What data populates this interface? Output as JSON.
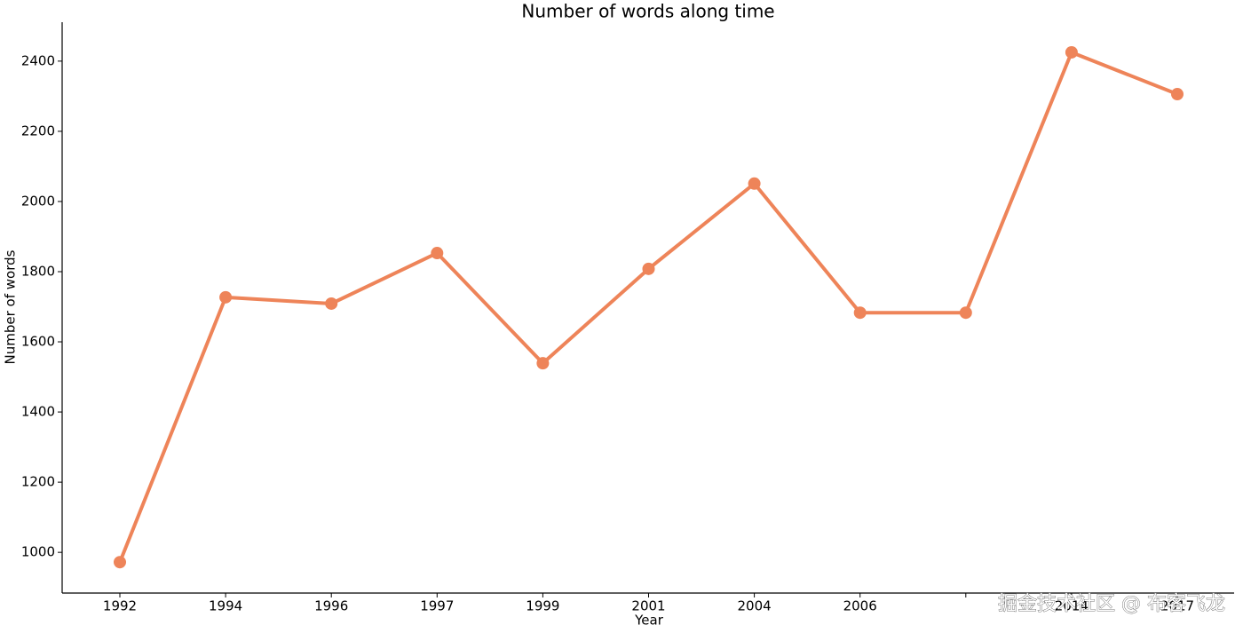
{
  "chart_data": {
    "type": "line",
    "title": "Number of words along time",
    "x_label": "Year",
    "y_label": "Number of words",
    "categories": [
      "1992",
      "1994",
      "1996",
      "1997",
      "1999",
      "2001",
      "2004",
      "2006",
      null,
      "2014",
      "2017"
    ],
    "series": [
      {
        "name": "Number of words",
        "color": "#ee8459",
        "values": [
          972,
          1727,
          1709,
          1853,
          1539,
          1808,
          2051,
          1683,
          1683,
          2425,
          2306
        ]
      }
    ],
    "ylim": [
      884,
      2511
    ],
    "yticks": [
      1000,
      1200,
      1400,
      1600,
      1800,
      2000,
      2200,
      2400
    ],
    "grid": false,
    "watermark": "掘金技术社区 @ 布客飞龙"
  }
}
